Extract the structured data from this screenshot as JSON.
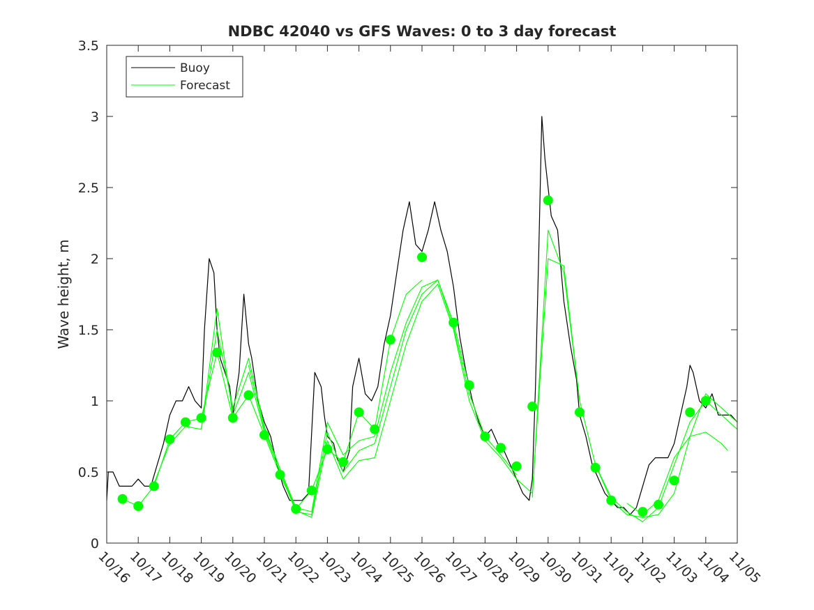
{
  "chart_data": {
    "type": "line",
    "title": "NDBC 42040 vs GFS Waves: 0 to 3 day forecast",
    "xlabel": "",
    "ylabel": "Wave height, m",
    "xlim": [
      0,
      20
    ],
    "ylim": [
      0,
      3.5
    ],
    "yticks": [
      0,
      0.5,
      1,
      1.5,
      2,
      2.5,
      3,
      3.5
    ],
    "ytick_labels": [
      "0",
      "0.5",
      "1",
      "1.5",
      "2",
      "2.5",
      "3",
      "3.5"
    ],
    "xtick_labels": [
      "10/16",
      "10/17",
      "10/18",
      "10/19",
      "10/20",
      "10/21",
      "10/22",
      "10/23",
      "10/24",
      "10/25",
      "10/26",
      "10/27",
      "10/28",
      "10/29",
      "10/30",
      "10/31",
      "11/01",
      "11/02",
      "11/03",
      "11/04",
      "11/05"
    ],
    "legend": {
      "placement": "top-left",
      "entries": [
        {
          "label": "Buoy",
          "color": "#000000"
        },
        {
          "label": "Forecast",
          "color": "#00ff00"
        }
      ]
    },
    "colors": {
      "buoy": "#000000",
      "forecast": "#00ff00",
      "marker": "#00ff00"
    },
    "series": [
      {
        "name": "Buoy",
        "x": [
          0,
          0.05,
          0.2,
          0.4,
          0.6,
          0.8,
          1.0,
          1.2,
          1.4,
          1.6,
          1.8,
          2.0,
          2.2,
          2.4,
          2.6,
          2.8,
          3.0,
          3.1,
          3.25,
          3.4,
          3.5,
          3.6,
          3.75,
          3.9,
          4.0,
          4.2,
          4.35,
          4.5,
          4.6,
          4.8,
          5.0,
          5.2,
          5.4,
          5.6,
          5.8,
          6.0,
          6.2,
          6.4,
          6.6,
          6.8,
          6.9,
          7.0,
          7.2,
          7.3,
          7.5,
          7.7,
          7.8,
          8.0,
          8.2,
          8.4,
          8.6,
          8.8,
          9.0,
          9.2,
          9.4,
          9.6,
          9.8,
          10.0,
          10.2,
          10.4,
          10.6,
          10.8,
          11.0,
          11.2,
          11.4,
          11.6,
          11.8,
          12.0,
          12.2,
          12.4,
          12.6,
          12.8,
          13.0,
          13.2,
          13.4,
          13.5,
          13.6,
          13.7,
          13.8,
          13.9,
          14.0,
          14.1,
          14.3,
          14.5,
          14.7,
          14.9,
          15.0,
          15.2,
          15.4,
          15.6,
          15.8,
          16.0,
          16.2,
          16.4,
          16.6,
          16.8,
          17.0,
          17.2,
          17.4,
          17.6,
          17.8,
          18.0,
          18.2,
          18.4,
          18.5,
          18.6,
          18.8,
          19.0,
          19.2,
          19.4,
          19.6,
          19.8,
          20.0
        ],
        "values": [
          0.3,
          0.5,
          0.5,
          0.4,
          0.4,
          0.4,
          0.45,
          0.4,
          0.4,
          0.55,
          0.7,
          0.9,
          1.0,
          1.0,
          1.1,
          1.0,
          0.95,
          1.5,
          2.0,
          1.9,
          1.5,
          1.3,
          1.2,
          1.1,
          0.9,
          1.2,
          1.75,
          1.4,
          1.3,
          1.0,
          0.85,
          0.75,
          0.55,
          0.4,
          0.3,
          0.3,
          0.3,
          0.35,
          1.2,
          1.1,
          0.9,
          0.75,
          0.7,
          0.6,
          0.5,
          0.65,
          1.1,
          1.3,
          1.05,
          1.0,
          1.1,
          1.4,
          1.6,
          1.9,
          2.2,
          2.4,
          2.1,
          2.05,
          2.2,
          2.4,
          2.2,
          2.05,
          1.8,
          1.45,
          1.2,
          1.0,
          0.85,
          0.75,
          0.8,
          0.7,
          0.65,
          0.55,
          0.45,
          0.35,
          0.3,
          0.45,
          1.1,
          2.0,
          3.0,
          2.7,
          2.5,
          2.3,
          2.2,
          1.7,
          1.4,
          1.15,
          0.9,
          0.75,
          0.55,
          0.45,
          0.35,
          0.3,
          0.25,
          0.25,
          0.2,
          0.25,
          0.4,
          0.55,
          0.6,
          0.6,
          0.6,
          0.7,
          0.9,
          1.1,
          1.25,
          1.2,
          1.0,
          0.95,
          1.05,
          0.9,
          0.9,
          0.9,
          0.85
        ]
      },
      {
        "name": "Forecast",
        "x": [
          0.5,
          1.0,
          1.5,
          2.0,
          2.5,
          3.0,
          3.5,
          4.0,
          4.5,
          5.0,
          5.5,
          6.0,
          6.5,
          7.0,
          7.5,
          8.0,
          8.5,
          9.0,
          9.5,
          10.0
        ],
        "values": [
          0.31,
          0.26,
          0.4,
          0.73,
          0.85,
          0.88,
          1.34,
          0.88,
          1.04,
          0.76,
          0.48,
          0.24,
          0.37,
          0.66,
          0.57,
          0.92,
          0.8,
          1.43,
          1.75,
          1.85
        ]
      },
      {
        "name": "Forecast",
        "x": [
          1.5,
          2.0,
          2.5,
          3.0,
          3.5,
          4.0,
          4.5,
          5.0,
          5.5,
          6.0,
          6.5,
          7.0,
          7.5,
          8.0,
          8.5,
          9.0,
          9.5,
          10.0,
          10.5,
          11.0,
          11.5
        ],
        "values": [
          0.42,
          0.7,
          0.82,
          0.8,
          1.5,
          0.95,
          1.3,
          0.82,
          0.52,
          0.25,
          0.22,
          0.85,
          0.62,
          0.72,
          0.75,
          1.2,
          1.55,
          1.8,
          1.85,
          1.55,
          1.1
        ]
      },
      {
        "name": "Forecast",
        "x": [
          3.0,
          3.5,
          4.0,
          4.5,
          5.0,
          5.5,
          6.0,
          6.5,
          7.0,
          7.5,
          8.0,
          8.5,
          9.0,
          9.5,
          10.0,
          10.5,
          11.0,
          11.5,
          12.0,
          12.5,
          13.0
        ],
        "values": [
          0.8,
          1.65,
          0.9,
          1.2,
          0.78,
          0.5,
          0.22,
          0.2,
          0.78,
          0.5,
          0.65,
          0.7,
          1.1,
          1.5,
          1.75,
          1.85,
          1.52,
          1.05,
          0.75,
          0.62,
          0.48
        ]
      },
      {
        "name": "Forecast",
        "x": [
          4.5,
          5.0,
          5.5,
          6.0,
          6.5,
          7.0,
          7.5,
          8.0,
          8.5,
          9.0,
          9.5,
          10.0,
          10.5,
          11.0,
          11.5,
          12.0,
          12.5,
          13.0,
          13.5,
          14.0,
          14.5,
          15.0
        ],
        "values": [
          1.25,
          0.8,
          0.52,
          0.23,
          0.18,
          0.72,
          0.45,
          0.58,
          0.6,
          1.0,
          1.4,
          1.7,
          1.82,
          1.5,
          1.0,
          0.72,
          0.6,
          0.45,
          0.35,
          2.0,
          1.95,
          1.0
        ]
      },
      {
        "name": "Forecast",
        "x": [
          13.5,
          14.0,
          14.5,
          15.0,
          15.5,
          16.0,
          16.5,
          17.0,
          17.5,
          18.0,
          18.5,
          19.0,
          19.5,
          20.0
        ],
        "values": [
          0.32,
          2.2,
          1.9,
          1.0,
          0.55,
          0.3,
          0.2,
          0.18,
          0.2,
          0.35,
          0.75,
          1.05,
          0.95,
          0.85
        ]
      },
      {
        "name": "Forecast",
        "x": [
          15.5,
          16.0,
          16.5,
          17.0,
          17.5,
          18.0,
          18.5,
          19.0,
          19.5,
          20.0
        ],
        "values": [
          0.55,
          0.32,
          0.22,
          0.15,
          0.25,
          0.55,
          0.85,
          1.0,
          0.9,
          0.8
        ]
      },
      {
        "name": "Forecast",
        "x": [
          16.5,
          17.0,
          17.5,
          18.0,
          18.5,
          19.0,
          19.5,
          19.7
        ],
        "values": [
          0.28,
          0.2,
          0.3,
          0.6,
          0.75,
          0.78,
          0.7,
          0.65
        ]
      }
    ],
    "markers": {
      "name": "Forecast analysis",
      "x": [
        0.5,
        1.0,
        1.5,
        2.0,
        2.5,
        3.0,
        3.5,
        4.0,
        4.5,
        5.0,
        5.5,
        6.0,
        6.5,
        7.0,
        7.5,
        8.0,
        8.5,
        9.0,
        10.0,
        11.0,
        11.5,
        12.0,
        12.5,
        13.0,
        13.5,
        14.0,
        15.0,
        15.5,
        16.0,
        17.0,
        17.5,
        18.0,
        18.5,
        19.0
      ],
      "values": [
        0.31,
        0.26,
        0.4,
        0.73,
        0.85,
        0.88,
        1.34,
        0.88,
        1.04,
        0.76,
        0.48,
        0.24,
        0.37,
        0.66,
        0.57,
        0.92,
        0.8,
        1.43,
        2.01,
        1.55,
        1.11,
        0.75,
        0.67,
        0.54,
        0.96,
        2.41,
        0.92,
        0.53,
        0.3,
        0.22,
        0.27,
        0.44,
        0.92,
        1.0
      ]
    }
  }
}
